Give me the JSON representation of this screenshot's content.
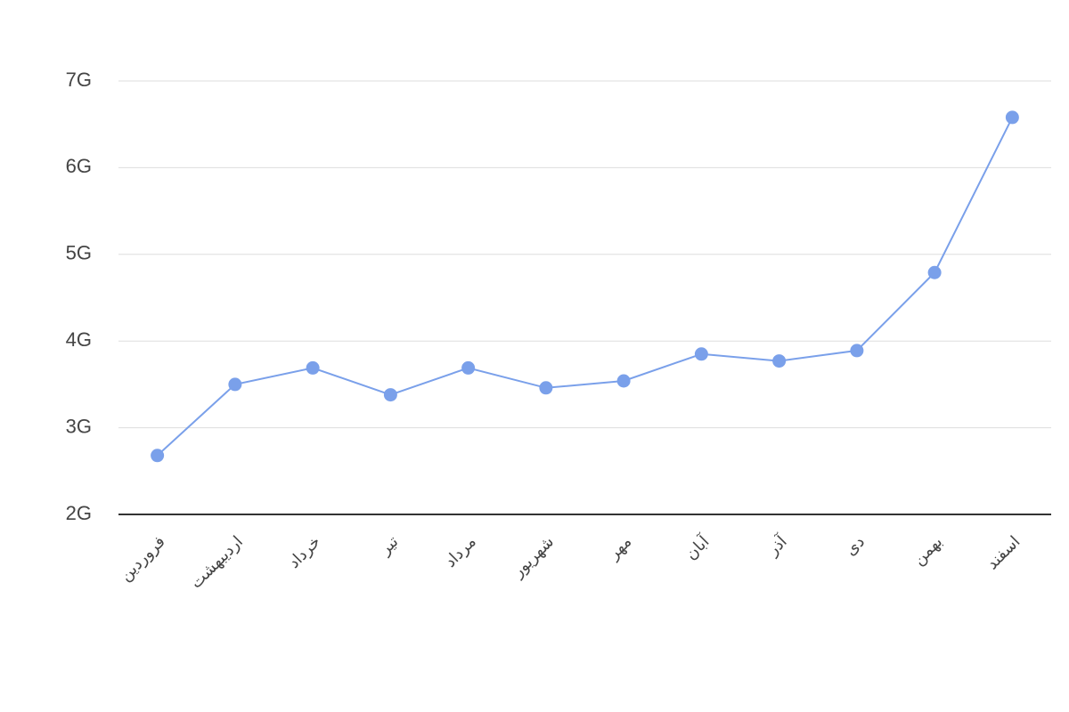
{
  "chart_data": {
    "type": "line",
    "categories": [
      "فروردین",
      "اردیبهشت",
      "خرداد",
      "تیر",
      "مرداد",
      "شهریور",
      "مهر",
      "آبان",
      "آذر",
      "دی",
      "بهمن",
      "اسفند"
    ],
    "values": [
      2680000000,
      3500000000,
      3690000000,
      3380000000,
      3690000000,
      3460000000,
      3540000000,
      3850000000,
      3770000000,
      3890000000,
      4790000000,
      6580000000
    ],
    "color": "#7aa0ea",
    "ylim": [
      2000000000,
      7000000000
    ],
    "yticks": [
      {
        "value": 2000000000,
        "label": "2G"
      },
      {
        "value": 3000000000,
        "label": "3G"
      },
      {
        "value": 4000000000,
        "label": "4G"
      },
      {
        "value": 5000000000,
        "label": "5G"
      },
      {
        "value": 6000000000,
        "label": "6G"
      },
      {
        "value": 7000000000,
        "label": "7G"
      }
    ],
    "grid": true
  }
}
